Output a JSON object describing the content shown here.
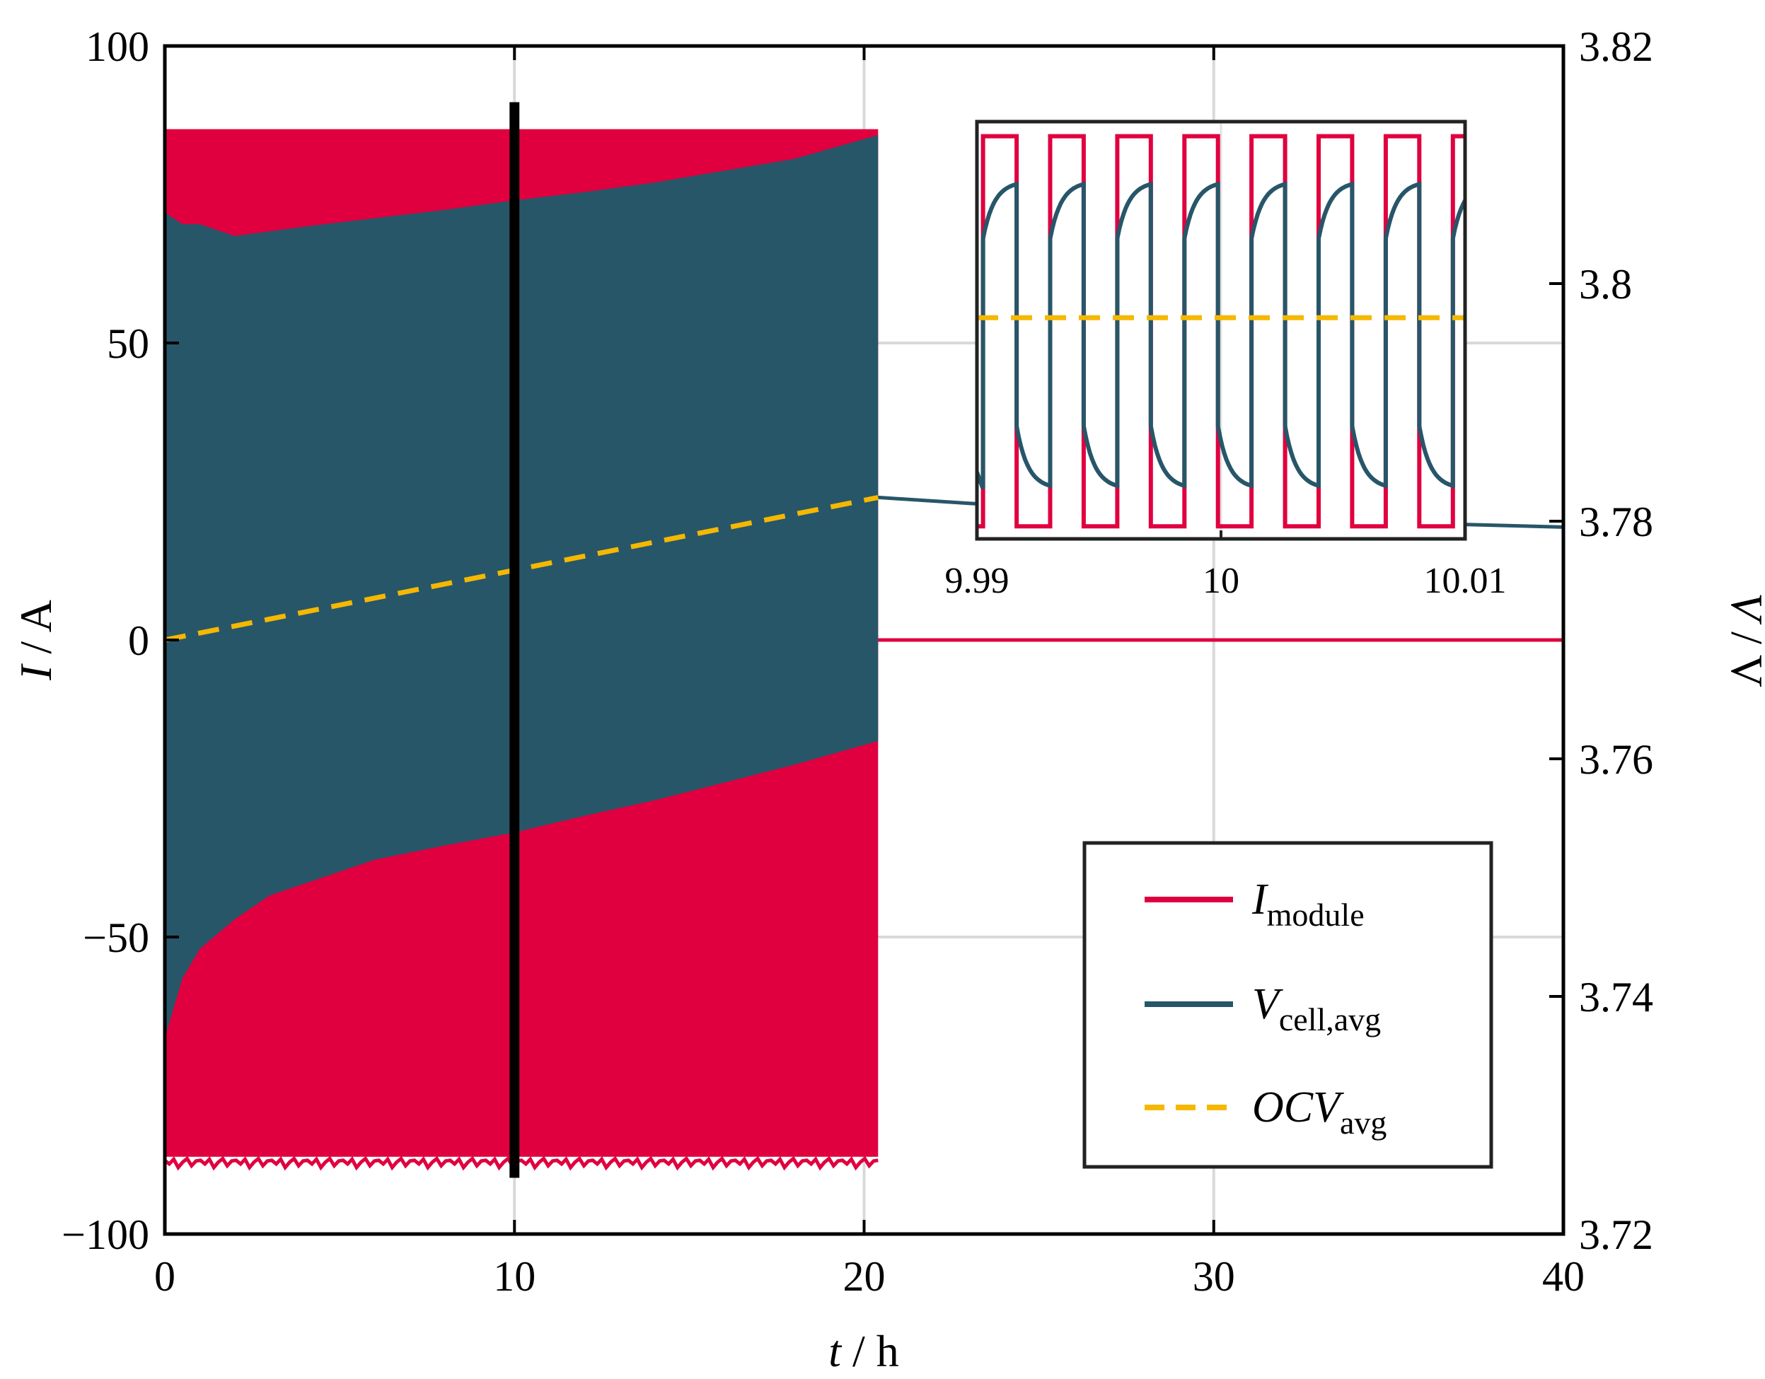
{
  "chart_data": {
    "type": "line",
    "xlabel": {
      "var": "t",
      "unit": " / h"
    },
    "ylabel_left": {
      "var": "I",
      "unit": " / A"
    },
    "ylabel_right": {
      "var": "V",
      "unit": " / V"
    },
    "xlim": [
      0,
      40
    ],
    "ylim_left": [
      -100,
      100
    ],
    "ylim_right": [
      3.72,
      3.82
    ],
    "xticks": [
      "0",
      "10",
      "20",
      "30",
      "40"
    ],
    "yticks_left": [
      "−100",
      "−50",
      "0",
      "50",
      "100"
    ],
    "yticks_right": [
      "3.72",
      "3.74",
      "3.76",
      "3.78",
      "3.8",
      "3.82"
    ],
    "grid": true,
    "colors": {
      "current": "#e0003f",
      "voltage": "#275669",
      "ocv": "#f5b800"
    },
    "series": [
      {
        "label_main": "I",
        "label_sub": "module",
        "axis": "left",
        "style": "solid",
        "band_upper": {
          "x": [
            0,
            1,
            2,
            3,
            5,
            8,
            10,
            12,
            15,
            18,
            20.4
          ],
          "y": [
            86,
            86,
            86,
            86,
            86,
            86,
            86,
            86,
            86,
            86,
            86
          ]
        },
        "band_lower": {
          "x": [
            0,
            1,
            2,
            3,
            5,
            8,
            10,
            12,
            15,
            18,
            20.4
          ],
          "y": [
            -87,
            -87,
            -87,
            -87,
            -87,
            -87,
            -87,
            -87,
            -87,
            -87,
            -87
          ]
        },
        "rest": {
          "x": [
            20.4,
            40
          ],
          "y": [
            0,
            0
          ]
        }
      },
      {
        "label_main": "V",
        "label_sub": "cell,avg",
        "axis": "right",
        "style": "solid",
        "band_upper": {
          "x": [
            0,
            0.5,
            1,
            2,
            3,
            4,
            6,
            8,
            10,
            12,
            14,
            16,
            18,
            20.4
          ],
          "y": [
            3.806,
            3.805,
            3.805,
            3.804,
            3.8044,
            3.8048,
            3.8055,
            3.8062,
            3.807,
            3.8077,
            3.8085,
            3.8095,
            3.8105,
            3.8125
          ]
        },
        "band_lower": {
          "x": [
            0,
            0.5,
            1,
            2,
            3,
            4,
            6,
            8,
            10,
            12,
            14,
            16,
            18,
            20.4
          ],
          "y": [
            3.7365,
            3.7415,
            3.744,
            3.7465,
            3.7485,
            3.7495,
            3.7515,
            3.7527,
            3.7538,
            3.7552,
            3.7565,
            3.758,
            3.7595,
            3.7615
          ]
        },
        "rest": {
          "x": [
            20.4,
            23,
            26,
            30,
            35,
            40
          ],
          "y": [
            3.782,
            3.7815,
            3.781,
            3.7805,
            3.7799,
            3.7795
          ]
        }
      },
      {
        "label_main": "OCV",
        "label_sub": "avg",
        "axis": "right",
        "style": "dashed",
        "x": [
          0,
          20.4
        ],
        "y": [
          3.77,
          3.782
        ]
      }
    ],
    "highlight_box": {
      "x": [
        9.95,
        10.05
      ],
      "y": [
        -90,
        90
      ]
    },
    "inset": {
      "xlim": [
        9.99,
        10.01
      ],
      "xticks": [
        "9.99",
        "10",
        "10.01"
      ],
      "xtick_values": [
        9.99,
        10,
        10.01
      ],
      "ylim": [
        0,
        1
      ],
      "period": 0.00275,
      "first_rise": 9.99025,
      "high_fraction": 0.5,
      "current_levels": [
        0.965,
        0.03
      ],
      "voltage_range": [
        0.12,
        0.85
      ],
      "ocv_level": 0.53
    },
    "legend_position": "lower-right"
  }
}
